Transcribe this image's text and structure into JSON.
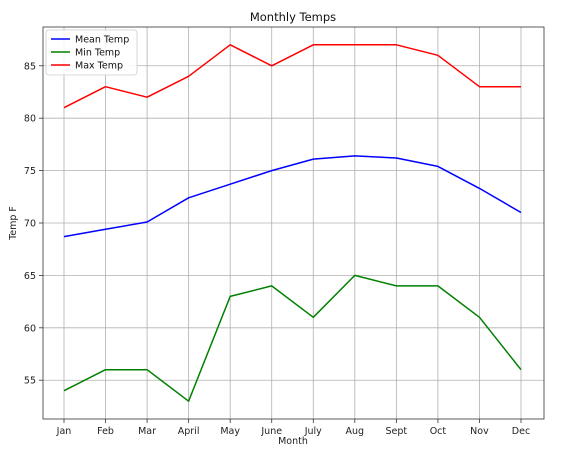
{
  "chart_data": {
    "type": "line",
    "title": "Monthly Temps",
    "xlabel": "Month",
    "ylabel": "Temp F",
    "categories": [
      "Jan",
      "Feb",
      "Mar",
      "April",
      "May",
      "June",
      "July",
      "Aug",
      "Sept",
      "Oct",
      "Nov",
      "Dec"
    ],
    "ylim": [
      51.3,
      88.7
    ],
    "yticks": [
      55,
      60,
      65,
      70,
      75,
      80,
      85
    ],
    "grid": true,
    "legend_position": "top-left",
    "series": [
      {
        "name": "Mean Temp",
        "color": "#0000ff",
        "values": [
          68.7,
          69.4,
          70.1,
          72.4,
          73.7,
          75.0,
          76.1,
          76.4,
          76.2,
          75.4,
          73.3,
          71.0
        ]
      },
      {
        "name": "Min Temp",
        "color": "#008000",
        "values": [
          54,
          56,
          56,
          53,
          63,
          64,
          61,
          65,
          64,
          64,
          61,
          56
        ]
      },
      {
        "name": "Max Temp",
        "color": "#ff0000",
        "values": [
          81,
          83,
          82,
          84,
          87,
          85,
          87,
          87,
          87,
          86,
          83,
          83
        ]
      }
    ]
  }
}
